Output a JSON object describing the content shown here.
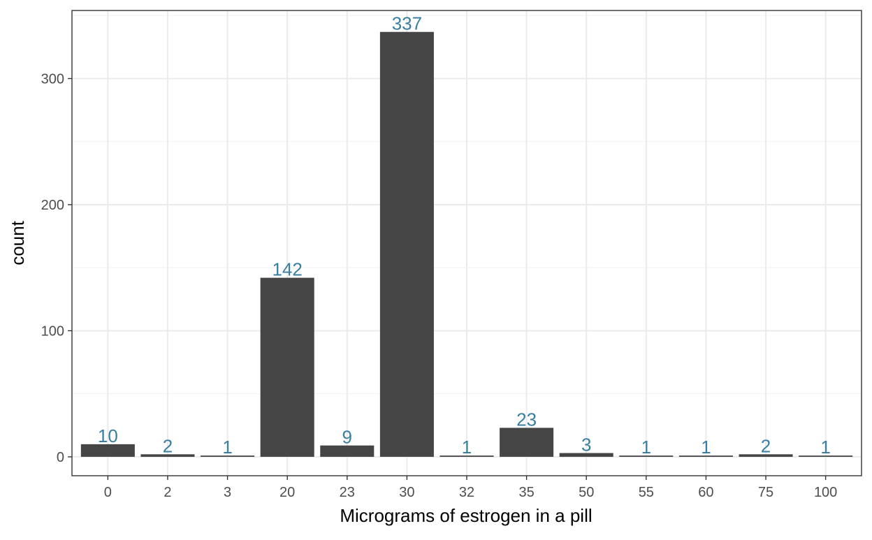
{
  "chart_data": {
    "type": "bar",
    "title": "",
    "xlabel": "Micrograms of estrogen in a pill",
    "ylabel": "count",
    "categories": [
      "0",
      "2",
      "3",
      "20",
      "23",
      "30",
      "32",
      "35",
      "50",
      "55",
      "60",
      "75",
      "100"
    ],
    "values": [
      10,
      2,
      1,
      142,
      9,
      337,
      1,
      23,
      3,
      1,
      1,
      2,
      1
    ],
    "data_labels": [
      "10",
      "2",
      "1",
      "142",
      "9",
      "337",
      "1",
      "23",
      "3",
      "1",
      "1",
      "2",
      "1"
    ],
    "ylim": [
      -15,
      354
    ],
    "yticks": [
      0,
      100,
      200,
      300
    ],
    "ytick_labels": [
      "0",
      "100",
      "200",
      "300"
    ],
    "grid": true,
    "legend": "none",
    "colors": {
      "bar": "#454545",
      "label": "#3a7fa0",
      "grid_major": "#ebebeb",
      "grid_minor": "#f2f2f2",
      "panel_border": "#333333",
      "tick": "#333333"
    }
  }
}
